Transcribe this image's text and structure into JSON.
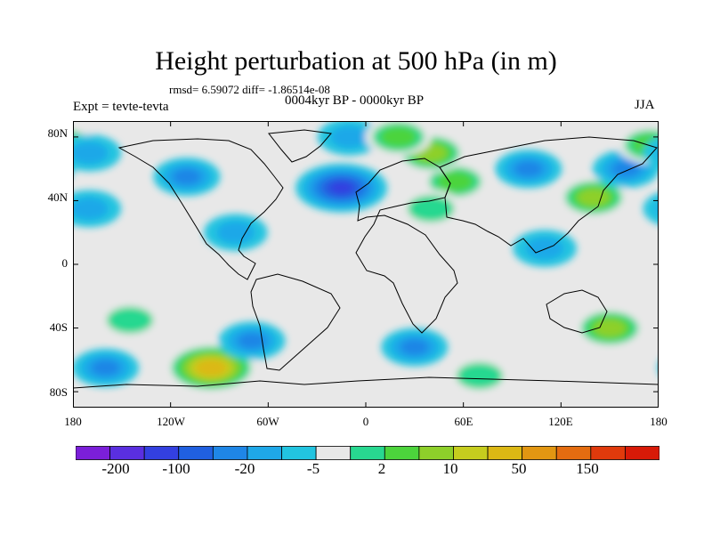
{
  "figure": {
    "title": "Height perturbation at 500 hPa (in m)",
    "stats": "rmsd= 6.59072 diff= -1.86514e-08",
    "period": "0004kyr BP - 0000kyr BP",
    "experiment": "Expt = tevte-tevta",
    "season": "JJA"
  },
  "map": {
    "projection": "cylindrical equidistant",
    "lon_range": [
      -180,
      180
    ],
    "lat_range": [
      -90,
      90
    ],
    "x_ticks": [
      "180",
      "120W",
      "60W",
      "0",
      "60E",
      "120E",
      "180"
    ],
    "y_ticks": [
      "80N",
      "40N",
      "0",
      "40S",
      "80S"
    ]
  },
  "colorbar": {
    "labels": [
      "-200",
      "-100",
      "-20",
      "-5",
      "2",
      "10",
      "50",
      "150"
    ],
    "colors": [
      "#7b1fd9",
      "#5a2fe0",
      "#3340e0",
      "#2060e0",
      "#1f86e6",
      "#1fa8e8",
      "#22c4e0",
      "#e8e8e8",
      "#28d890",
      "#4cd43c",
      "#8ed02a",
      "#c6cd1e",
      "#dcb814",
      "#e29612",
      "#e46c10",
      "#e03a0c",
      "#d81a08"
    ]
  },
  "chart_data": {
    "type": "heatmap",
    "title": "Height perturbation at 500 hPa (in m)",
    "xlabel": "",
    "ylabel": "",
    "xlim": [
      -180,
      180
    ],
    "ylim": [
      -90,
      90
    ],
    "field_features": [
      {
        "lon": -15,
        "lat": 48,
        "value": -50
      },
      {
        "lon": 55,
        "lat": 52,
        "value": 10
      },
      {
        "lon": 40,
        "lat": 70,
        "value": 15
      },
      {
        "lon": 100,
        "lat": 60,
        "value": -10
      },
      {
        "lon": 140,
        "lat": 42,
        "value": 15
      },
      {
        "lon": 160,
        "lat": 60,
        "value": -10
      },
      {
        "lon": -110,
        "lat": 55,
        "value": -10
      },
      {
        "lon": 175,
        "lat": 75,
        "value": 10
      },
      {
        "lon": -10,
        "lat": 80,
        "value": -5
      },
      {
        "lon": 20,
        "lat": 80,
        "value": 10
      },
      {
        "lon": -170,
        "lat": 35,
        "value": -5
      },
      {
        "lon": -170,
        "lat": 70,
        "value": -5
      },
      {
        "lon": -95,
        "lat": -65,
        "value": 50
      },
      {
        "lon": -70,
        "lat": -48,
        "value": -10
      },
      {
        "lon": 30,
        "lat": -52,
        "value": -10
      },
      {
        "lon": 150,
        "lat": -40,
        "value": 15
      },
      {
        "lon": -145,
        "lat": -35,
        "value": 7
      },
      {
        "lon": -160,
        "lat": -65,
        "value": -10
      },
      {
        "lon": 70,
        "lat": -70,
        "value": 7
      },
      {
        "lon": -80,
        "lat": 20,
        "value": -5
      },
      {
        "lon": 110,
        "lat": 10,
        "value": -5
      },
      {
        "lon": 40,
        "lat": 35,
        "value": 7
      }
    ]
  }
}
